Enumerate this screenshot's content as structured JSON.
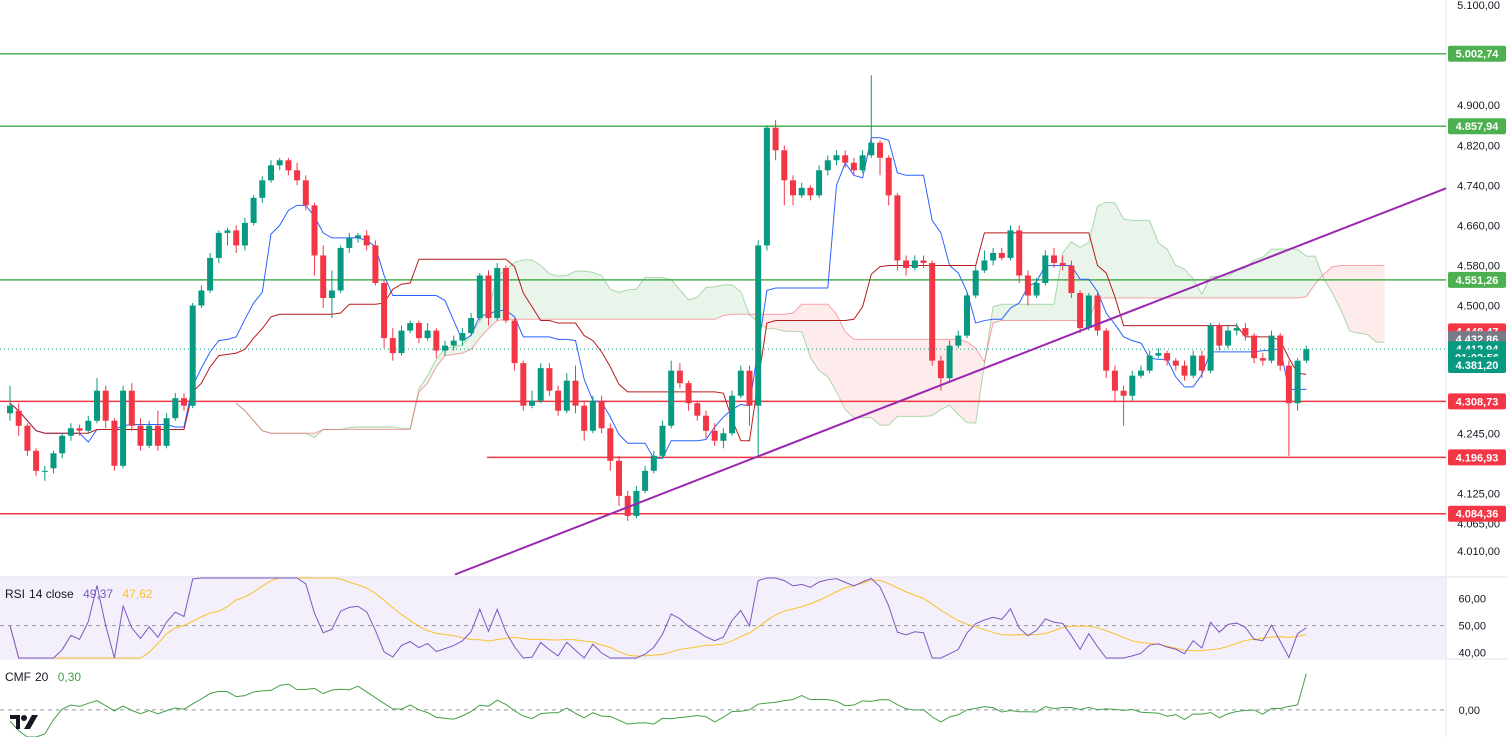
{
  "chart_data": {
    "type": "candlestick",
    "title": "",
    "price_axis": {
      "ticks": [
        "5.100,00",
        "4.900,00",
        "4.820,00",
        "4.740,00",
        "4.660,00",
        "4.580,00",
        "4.500,00",
        "4.245,00",
        "4.125,00",
        "4.065,00",
        "4.010,00"
      ],
      "tick_values": [
        5100,
        4900,
        4820,
        4740,
        4660,
        4580,
        4500,
        4245,
        4125,
        4065,
        4010
      ],
      "ylim": [
        3960,
        5110
      ]
    },
    "horizontal_levels": [
      {
        "label": "5.002,74",
        "value": 5002.74,
        "color": "#4caf50"
      },
      {
        "label": "4.857,94",
        "value": 4857.94,
        "color": "#4caf50"
      },
      {
        "label": "4.551,26",
        "value": 4551.26,
        "color": "#4caf50"
      },
      {
        "label": "4.308,73",
        "value": 4308.73,
        "color": "#f23645"
      },
      {
        "label": "4.196,93",
        "value": 4196.93,
        "color": "#f23645"
      },
      {
        "label": "4.084,36",
        "value": 4084.36,
        "color": "#f23645"
      }
    ],
    "price_badges": [
      {
        "label": "4.448,47",
        "value": 4448.47,
        "color": "#f23645"
      },
      {
        "label": "4.432,86",
        "value": 4432.86,
        "color": "#787b86"
      },
      {
        "label": "4.412,94",
        "value": 4412.94,
        "color": "#089981"
      },
      {
        "label": "01:02:56",
        "value": 4396.5,
        "color": "#089981"
      },
      {
        "label": "4.381,20",
        "value": 4381.2,
        "color": "#089981"
      }
    ],
    "trendline": {
      "color": "#9c27b0",
      "from": [
        0,
        3963
      ],
      "to": [
        1,
        4734
      ]
    },
    "candles": [
      [
        4285,
        4300,
        4270,
        4340
      ],
      [
        4290,
        4260,
        4240,
        4305
      ],
      [
        4260,
        4210,
        4200,
        4265
      ],
      [
        4210,
        4170,
        4160,
        4215
      ],
      [
        4170,
        4170,
        4150,
        4180
      ],
      [
        4175,
        4205,
        4165,
        4210
      ],
      [
        4205,
        4240,
        4195,
        4245
      ],
      [
        4240,
        4255,
        4230,
        4265
      ],
      [
        4255,
        4250,
        4240,
        4262
      ],
      [
        4250,
        4270,
        4245,
        4280
      ],
      [
        4270,
        4330,
        4265,
        4355
      ],
      [
        4330,
        4270,
        4255,
        4340
      ],
      [
        4270,
        4180,
        4170,
        4275
      ],
      [
        4180,
        4330,
        4175,
        4340
      ],
      [
        4330,
        4260,
        4250,
        4345
      ],
      [
        4260,
        4220,
        4210,
        4275
      ],
      [
        4220,
        4260,
        4215,
        4270
      ],
      [
        4260,
        4220,
        4210,
        4290
      ],
      [
        4220,
        4275,
        4215,
        4285
      ],
      [
        4275,
        4315,
        4270,
        4325
      ],
      [
        4315,
        4300,
        4290,
        4325
      ],
      [
        4300,
        4500,
        4295,
        4505
      ],
      [
        4500,
        4530,
        4495,
        4540
      ],
      [
        4530,
        4595,
        4525,
        4605
      ],
      [
        4595,
        4645,
        4585,
        4650
      ],
      [
        4645,
        4650,
        4620,
        4655
      ],
      [
        4650,
        4620,
        4605,
        4660
      ],
      [
        4620,
        4665,
        4610,
        4675
      ],
      [
        4665,
        4715,
        4660,
        4720
      ],
      [
        4715,
        4750,
        4705,
        4758
      ],
      [
        4750,
        4780,
        4745,
        4790
      ],
      [
        4780,
        4790,
        4770,
        4795
      ],
      [
        4790,
        4770,
        4760,
        4795
      ],
      [
        4770,
        4750,
        4740,
        4785
      ],
      [
        4750,
        4700,
        4690,
        4760
      ],
      [
        4700,
        4600,
        4560,
        4705
      ],
      [
        4600,
        4515,
        4495,
        4620
      ],
      [
        4515,
        4530,
        4475,
        4570
      ],
      [
        4530,
        4615,
        4525,
        4620
      ],
      [
        4615,
        4635,
        4605,
        4645
      ],
      [
        4635,
        4640,
        4625,
        4645
      ],
      [
        4640,
        4620,
        4610,
        4650
      ],
      [
        4620,
        4545,
        4540,
        4630
      ],
      [
        4545,
        4435,
        4415,
        4550
      ],
      [
        4435,
        4405,
        4390,
        4455
      ],
      [
        4405,
        4450,
        4400,
        4460
      ],
      [
        4450,
        4465,
        4445,
        4470
      ],
      [
        4465,
        4435,
        4425,
        4470
      ],
      [
        4435,
        4450,
        4430,
        4465
      ],
      [
        4450,
        4410,
        4395,
        4455
      ],
      [
        4410,
        4420,
        4400,
        4430
      ],
      [
        4420,
        4430,
        4410,
        4440
      ],
      [
        4430,
        4445,
        4420,
        4455
      ],
      [
        4445,
        4475,
        4440,
        4485
      ],
      [
        4475,
        4560,
        4470,
        4565
      ],
      [
        4560,
        4475,
        4460,
        4570
      ],
      [
        4475,
        4575,
        4470,
        4585
      ],
      [
        4575,
        4470,
        4465,
        4580
      ],
      [
        4470,
        4385,
        4370,
        4475
      ],
      [
        4385,
        4300,
        4290,
        4390
      ],
      [
        4300,
        4310,
        4295,
        4330
      ],
      [
        4310,
        4375,
        4305,
        4385
      ],
      [
        4375,
        4330,
        4320,
        4385
      ],
      [
        4330,
        4290,
        4280,
        4340
      ],
      [
        4290,
        4350,
        4285,
        4365
      ],
      [
        4350,
        4300,
        4285,
        4380
      ],
      [
        4300,
        4250,
        4230,
        4310
      ],
      [
        4250,
        4310,
        4245,
        4320
      ],
      [
        4310,
        4255,
        4245,
        4320
      ],
      [
        4255,
        4190,
        4170,
        4265
      ],
      [
        4190,
        4120,
        4100,
        4200
      ],
      [
        4120,
        4080,
        4070,
        4130
      ],
      [
        4080,
        4130,
        4075,
        4140
      ],
      [
        4130,
        4170,
        4125,
        4180
      ],
      [
        4170,
        4200,
        4165,
        4210
      ],
      [
        4200,
        4260,
        4195,
        4270
      ],
      [
        4260,
        4370,
        4255,
        4390
      ],
      [
        4370,
        4345,
        4335,
        4385
      ],
      [
        4345,
        4305,
        4290,
        4350
      ],
      [
        4305,
        4280,
        4270,
        4310
      ],
      [
        4280,
        4250,
        4235,
        4290
      ],
      [
        4250,
        4230,
        4220,
        4265
      ],
      [
        4230,
        4245,
        4215,
        4255
      ],
      [
        4245,
        4320,
        4240,
        4330
      ],
      [
        4320,
        4370,
        4315,
        4380
      ],
      [
        4370,
        4300,
        4260,
        4380
      ],
      [
        4300,
        4620,
        4200,
        4630
      ],
      [
        4620,
        4855,
        4610,
        4860
      ],
      [
        4855,
        4810,
        4790,
        4870
      ],
      [
        4810,
        4750,
        4700,
        4820
      ],
      [
        4750,
        4720,
        4700,
        4760
      ],
      [
        4720,
        4735,
        4715,
        4745
      ],
      [
        4735,
        4720,
        4710,
        4740
      ],
      [
        4720,
        4770,
        4715,
        4780
      ],
      [
        4770,
        4790,
        4760,
        4800
      ],
      [
        4790,
        4800,
        4780,
        4810
      ],
      [
        4800,
        4785,
        4775,
        4810
      ],
      [
        4785,
        4770,
        4760,
        4795
      ],
      [
        4770,
        4800,
        4765,
        4810
      ],
      [
        4800,
        4825,
        4795,
        4960
      ],
      [
        4825,
        4795,
        4760,
        4830
      ],
      [
        4795,
        4720,
        4700,
        4800
      ],
      [
        4720,
        4590,
        4570,
        4725
      ],
      [
        4590,
        4575,
        4560,
        4600
      ],
      [
        4575,
        4590,
        4570,
        4600
      ],
      [
        4590,
        4585,
        4575,
        4600
      ],
      [
        4585,
        4390,
        4380,
        4590
      ],
      [
        4390,
        4355,
        4330,
        4400
      ],
      [
        4355,
        4420,
        4350,
        4430
      ],
      [
        4420,
        4440,
        4415,
        4450
      ],
      [
        4440,
        4520,
        4435,
        4525
      ],
      [
        4520,
        4570,
        4515,
        4580
      ],
      [
        4570,
        4590,
        4565,
        4610
      ],
      [
        4590,
        4605,
        4580,
        4615
      ],
      [
        4605,
        4595,
        4590,
        4615
      ],
      [
        4595,
        4650,
        4590,
        4660
      ],
      [
        4650,
        4560,
        4545,
        4660
      ],
      [
        4560,
        4520,
        4500,
        4570
      ],
      [
        4520,
        4545,
        4515,
        4555
      ],
      [
        4545,
        4600,
        4540,
        4610
      ],
      [
        4600,
        4585,
        4575,
        4615
      ],
      [
        4585,
        4580,
        4570,
        4600
      ],
      [
        4580,
        4525,
        4515,
        4590
      ],
      [
        4525,
        4455,
        4445,
        4530
      ],
      [
        4455,
        4520,
        4450,
        4525
      ],
      [
        4520,
        4450,
        4440,
        4525
      ],
      [
        4450,
        4370,
        4355,
        4455
      ],
      [
        4370,
        4330,
        4310,
        4380
      ],
      [
        4330,
        4320,
        4260,
        4340
      ],
      [
        4320,
        4360,
        4310,
        4370
      ],
      [
        4360,
        4370,
        4355,
        4380
      ],
      [
        4370,
        4400,
        4365,
        4410
      ],
      [
        4400,
        4405,
        4395,
        4415
      ],
      [
        4405,
        4390,
        4380,
        4410
      ],
      [
        4390,
        4380,
        4370,
        4395
      ],
      [
        4380,
        4360,
        4350,
        4390
      ],
      [
        4360,
        4400,
        4355,
        4410
      ],
      [
        4400,
        4370,
        4355,
        4410
      ],
      [
        4370,
        4460,
        4365,
        4465
      ],
      [
        4460,
        4420,
        4410,
        4465
      ],
      [
        4420,
        4450,
        4415,
        4460
      ],
      [
        4450,
        4455,
        4440,
        4465
      ],
      [
        4455,
        4440,
        4430,
        4465
      ],
      [
        4440,
        4395,
        4385,
        4445
      ],
      [
        4395,
        4390,
        4380,
        4405
      ],
      [
        4390,
        4440,
        4385,
        4450
      ],
      [
        4440,
        4380,
        4370,
        4445
      ],
      [
        4380,
        4305,
        4200,
        4390
      ],
      [
        4305,
        4390,
        4290,
        4395
      ],
      [
        4390,
        4412.94,
        4385,
        4420
      ]
    ],
    "rsi": {
      "label": "RSI",
      "params": "14 close",
      "value_label": "49,37",
      "ma_label": "47,62",
      "line_color": "#7e57c2",
      "ma_color": "#fbc02d",
      "ticks": [
        "60,00",
        "50,00",
        "40,00"
      ],
      "tick_values": [
        60,
        50,
        40
      ],
      "ylim": [
        38,
        68
      ]
    },
    "cmf": {
      "label": "CMF",
      "params": "20",
      "value_label": "0,30",
      "line_color": "#43a047",
      "ticks": [
        "0,00"
      ],
      "tick_values": [
        0
      ],
      "ylim": [
        -0.12,
        0.22
      ]
    }
  }
}
